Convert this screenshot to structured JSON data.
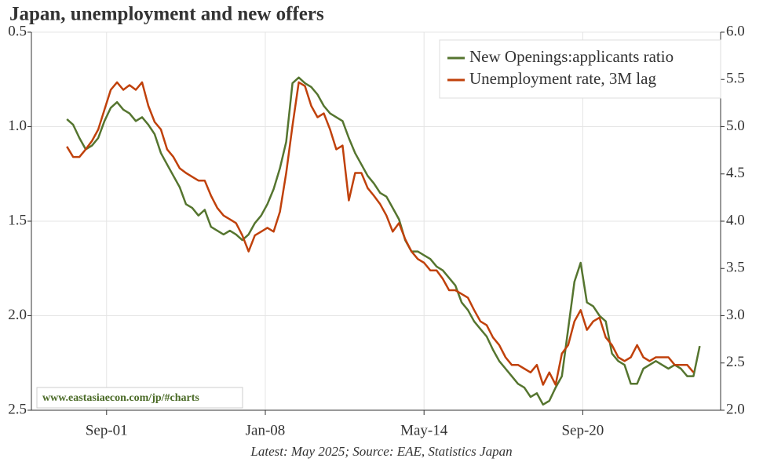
{
  "chart_data": {
    "type": "line",
    "title": "Japan, unemployment and new offers",
    "footnote": "Latest: May 2025; Source: EAE, Statistics Japan",
    "watermark": "www.eastasiaecon.com/jp/#charts",
    "grid": true,
    "legend": "upper right",
    "xlim": [
      "1998-09",
      "2026-03"
    ],
    "xticks": [
      {
        "value": "2001-09",
        "label": "Sep-01"
      },
      {
        "value": "2008-01",
        "label": "Jan-08"
      },
      {
        "value": "2014-05",
        "label": "May-14"
      },
      {
        "value": "2020-09",
        "label": "Sep-20"
      }
    ],
    "ylim": [
      2.5,
      0.5
    ],
    "yticks": [
      0.5,
      {
        "value": 1,
        "label": "1.0"
      },
      1.5,
      {
        "value": 2,
        "label": "2.0"
      },
      2.5
    ],
    "y2lim": [
      2,
      6
    ],
    "y2ticks": [
      {
        "value": 2,
        "label": "2.0"
      },
      2.5,
      {
        "value": 3,
        "label": "3.0"
      },
      3.5,
      {
        "value": 4,
        "label": "4.0"
      },
      4.5,
      {
        "value": 5,
        "label": "5.0"
      },
      5.5,
      {
        "value": 6,
        "label": "6.0"
      }
    ],
    "x": [
      "2000-02",
      "2000-05",
      "2000-08",
      "2000-11",
      "2001-02",
      "2001-05",
      "2001-08",
      "2001-11",
      "2002-02",
      "2002-05",
      "2002-08",
      "2002-11",
      "2003-02",
      "2003-05",
      "2003-08",
      "2003-11",
      "2004-02",
      "2004-05",
      "2004-08",
      "2004-11",
      "2005-02",
      "2005-05",
      "2005-08",
      "2005-11",
      "2006-02",
      "2006-05",
      "2006-08",
      "2006-11",
      "2007-02",
      "2007-05",
      "2007-08",
      "2007-11",
      "2008-02",
      "2008-05",
      "2008-08",
      "2008-11",
      "2009-02",
      "2009-05",
      "2009-08",
      "2009-11",
      "2010-02",
      "2010-05",
      "2010-08",
      "2010-11",
      "2011-02",
      "2011-05",
      "2011-08",
      "2011-11",
      "2012-02",
      "2012-05",
      "2012-08",
      "2012-11",
      "2013-02",
      "2013-05",
      "2013-08",
      "2013-11",
      "2014-02",
      "2014-05",
      "2014-08",
      "2014-11",
      "2015-02",
      "2015-05",
      "2015-08",
      "2015-11",
      "2016-02",
      "2016-05",
      "2016-08",
      "2016-11",
      "2017-02",
      "2017-05",
      "2017-08",
      "2017-11",
      "2018-02",
      "2018-05",
      "2018-08",
      "2018-11",
      "2019-02",
      "2019-05",
      "2019-08",
      "2019-11",
      "2020-02",
      "2020-05",
      "2020-08",
      "2020-11",
      "2021-02",
      "2021-05",
      "2021-08",
      "2021-11",
      "2022-02",
      "2022-05",
      "2022-08",
      "2022-11",
      "2023-02",
      "2023-05",
      "2023-08",
      "2023-11",
      "2024-02",
      "2024-05",
      "2024-08",
      "2024-11",
      "2025-02",
      "2025-05"
    ],
    "series": [
      {
        "name": "New Openings:applicants ratio",
        "color": "#55752f",
        "axis": "y",
        "values": [
          0.96,
          0.99,
          1.06,
          1.12,
          1.1,
          1.06,
          0.97,
          0.9,
          0.87,
          0.91,
          0.93,
          0.97,
          0.95,
          0.99,
          1.04,
          1.14,
          1.2,
          1.26,
          1.32,
          1.41,
          1.43,
          1.47,
          1.44,
          1.53,
          1.55,
          1.57,
          1.55,
          1.57,
          1.6,
          1.57,
          1.51,
          1.47,
          1.41,
          1.33,
          1.22,
          1.08,
          0.77,
          0.74,
          0.77,
          0.79,
          0.83,
          0.89,
          0.93,
          0.95,
          0.97,
          1.06,
          1.14,
          1.2,
          1.26,
          1.3,
          1.35,
          1.37,
          1.43,
          1.49,
          1.6,
          1.66,
          1.66,
          1.68,
          1.7,
          1.74,
          1.76,
          1.8,
          1.84,
          1.93,
          1.97,
          2.03,
          2.07,
          2.11,
          2.18,
          2.24,
          2.28,
          2.32,
          2.36,
          2.38,
          2.43,
          2.41,
          2.47,
          2.45,
          2.38,
          2.32,
          2.07,
          1.82,
          1.72,
          1.93,
          1.95,
          2.0,
          2.03,
          2.2,
          2.24,
          2.26,
          2.36,
          2.36,
          2.28,
          2.26,
          2.24,
          2.26,
          2.28,
          2.26,
          2.28,
          2.32,
          2.32,
          2.16
        ]
      },
      {
        "name": "Unemployment rate, 3M lag",
        "color": "#c0410b",
        "axis": "y2",
        "values": [
          4.79,
          4.68,
          4.68,
          4.76,
          4.85,
          4.97,
          5.18,
          5.39,
          5.47,
          5.39,
          5.44,
          5.39,
          5.47,
          5.22,
          5.05,
          4.97,
          4.76,
          4.68,
          4.56,
          4.51,
          4.47,
          4.43,
          4.43,
          4.27,
          4.14,
          4.06,
          4.02,
          3.98,
          3.85,
          3.68,
          3.85,
          3.89,
          3.93,
          3.89,
          4.1,
          4.51,
          5.01,
          5.47,
          5.43,
          5.22,
          5.1,
          5.14,
          4.97,
          4.76,
          4.8,
          4.22,
          4.51,
          4.51,
          4.35,
          4.27,
          4.18,
          4.06,
          3.89,
          3.98,
          3.81,
          3.68,
          3.6,
          3.56,
          3.48,
          3.48,
          3.39,
          3.27,
          3.27,
          3.23,
          3.19,
          3.06,
          2.94,
          2.9,
          2.77,
          2.69,
          2.56,
          2.48,
          2.48,
          2.44,
          2.4,
          2.48,
          2.27,
          2.4,
          2.27,
          2.6,
          2.69,
          2.94,
          3.06,
          2.85,
          2.94,
          2.98,
          2.77,
          2.69,
          2.56,
          2.52,
          2.56,
          2.69,
          2.56,
          2.52,
          2.56,
          2.56,
          2.56,
          2.48,
          2.48,
          2.48,
          2.4,
          null
        ]
      }
    ]
  }
}
